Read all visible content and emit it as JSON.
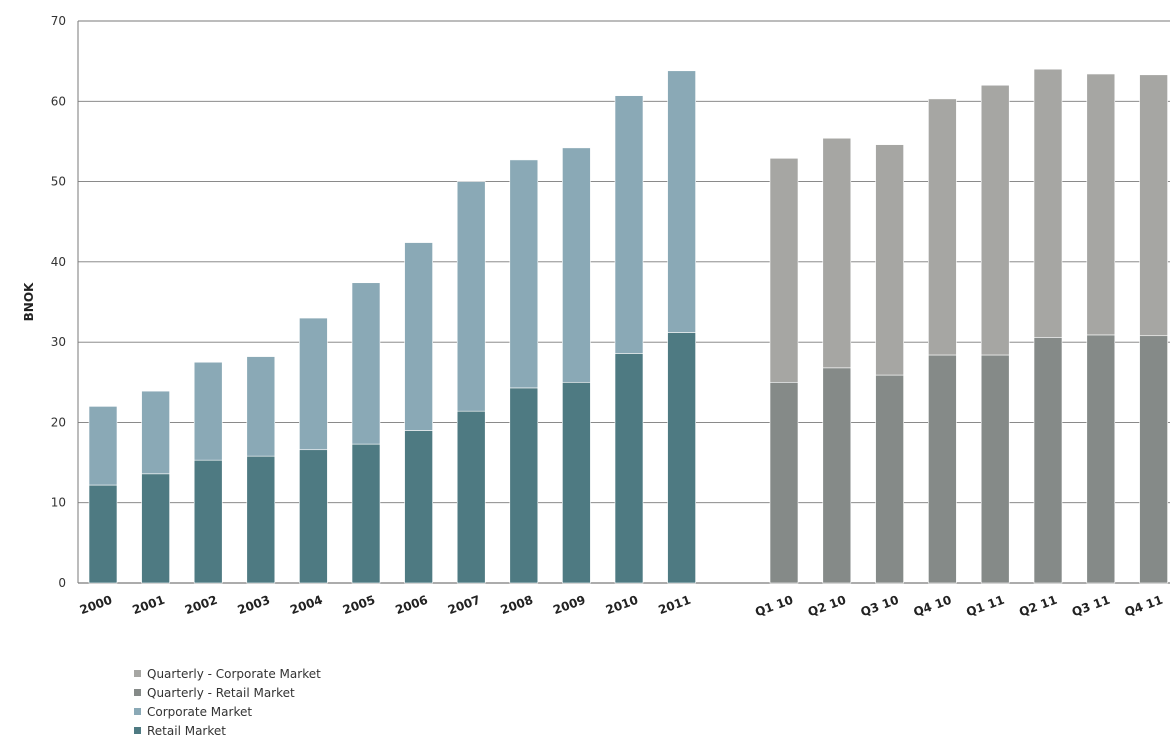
{
  "colors": {
    "quarterly_corporate": "#a6a6a3",
    "quarterly_retail": "#858a88",
    "corporate": "#8aa9b6",
    "retail": "#4e7a82",
    "grid": "#7a7a7a"
  },
  "chart_data": {
    "type": "bar",
    "stacked": true,
    "ylabel": "BNOK",
    "ylim": [
      0,
      70
    ],
    "yticks": [
      "0",
      "10",
      "20",
      "30",
      "40",
      "50",
      "60",
      "70"
    ],
    "grid": true,
    "legend_position": "bottom-left",
    "annual": {
      "categories": [
        "2000",
        "2001",
        "2002",
        "2003",
        "2004",
        "2005",
        "2006",
        "2007",
        "2008",
        "2009",
        "2010",
        "2011"
      ],
      "series": [
        {
          "name": "Retail Market",
          "values": [
            12.2,
            13.6,
            15.3,
            15.8,
            16.6,
            17.3,
            19.0,
            21.4,
            24.3,
            25.0,
            28.6,
            31.2
          ]
        },
        {
          "name": "Corporate Market",
          "values": [
            9.8,
            10.3,
            12.2,
            12.4,
            16.4,
            20.1,
            23.4,
            28.6,
            28.4,
            29.2,
            32.1,
            32.6
          ]
        }
      ]
    },
    "quarterly": {
      "categories": [
        "Q1 10",
        "Q2 10",
        "Q3 10",
        "Q4 10",
        "Q1 11",
        "Q2 11",
        "Q3 11",
        "Q4 11"
      ],
      "series": [
        {
          "name": "Quarterly - Retail Market",
          "values": [
            25.0,
            26.8,
            25.9,
            28.4,
            28.4,
            30.6,
            30.9,
            30.8
          ]
        },
        {
          "name": "Quarterly - Corporate Market",
          "values": [
            27.9,
            28.6,
            28.7,
            31.9,
            33.6,
            33.4,
            32.5,
            32.5
          ]
        }
      ]
    },
    "legend": [
      {
        "label": "Quarterly - Corporate Market",
        "color_key": "quarterly_corporate"
      },
      {
        "label": "Quarterly - Retail Market",
        "color_key": "quarterly_retail"
      },
      {
        "label": "Corporate Market",
        "color_key": "corporate"
      },
      {
        "label": "Retail Market",
        "color_key": "retail"
      }
    ]
  }
}
